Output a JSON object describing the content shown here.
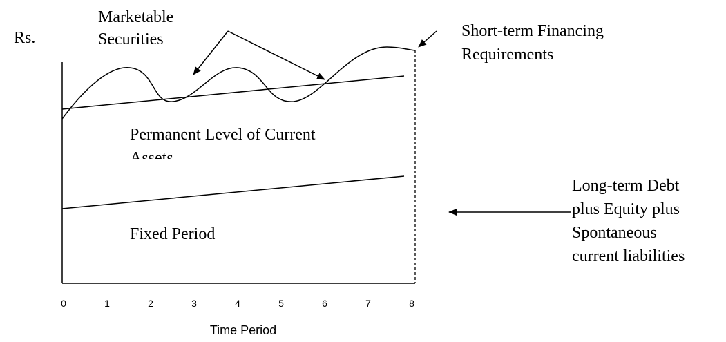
{
  "y_axis_label": "Rs.",
  "x_axis_label": "Time Period",
  "x_ticks": [
    0,
    1,
    2,
    3,
    4,
    5,
    6,
    7,
    8
  ],
  "labels": {
    "marketable_securities": [
      "Marketable",
      "Securities"
    ],
    "short_term_financing": [
      "Short-term Financing",
      "Requirements"
    ],
    "permanent_level": [
      "Permanent Level of Current",
      "Assets"
    ],
    "fixed_period": "Fixed Period",
    "long_term": [
      "Long-term Debt",
      "plus Equity plus",
      "Spontaneous",
      "current liabilities"
    ]
  }
}
